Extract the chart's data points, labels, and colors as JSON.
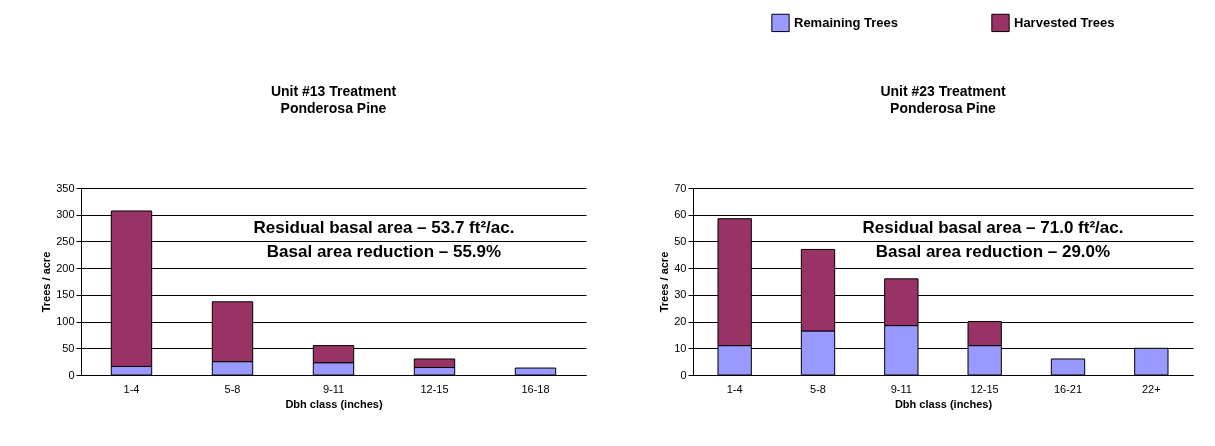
{
  "chart_data": [
    {
      "type": "bar",
      "title": "Unit #13 Treatment",
      "subtitle": "Ponderosa Pine",
      "xlabel": "Dbh class (inches)",
      "ylabel": "Trees / acre",
      "categories": [
        "1-4",
        "5-8",
        "9-11",
        "12-15",
        "16-18"
      ],
      "stacked": true,
      "series": [
        {
          "name": "Remaining Trees",
          "color": "#9999ff",
          "values": [
            16,
            25,
            23,
            14,
            13
          ]
        },
        {
          "name": "Harvested Trees",
          "color": "#993366",
          "values": [
            291,
            112,
            32,
            16,
            0
          ]
        }
      ],
      "ylim": [
        0,
        350
      ],
      "yticks": [
        0,
        50,
        100,
        150,
        200,
        250,
        300,
        350
      ],
      "grid": "y",
      "legend": "top right",
      "annotations": [
        "Residual basal area – 53.7 ft²/ac.",
        "Basal area reduction – 55.9%"
      ]
    },
    {
      "type": "bar",
      "title": "Unit #23 Treatment",
      "subtitle": "Ponderosa Pine",
      "xlabel": "Dbh class (inches)",
      "ylabel": "Trees / acre",
      "categories": [
        "1-4",
        "5-8",
        "9-11",
        "12-15",
        "16-21",
        "22+"
      ],
      "stacked": true,
      "series": [
        {
          "name": "Remaining Trees",
          "color": "#9999ff",
          "values": [
            11,
            16.5,
            18.5,
            11,
            6,
            10
          ]
        },
        {
          "name": "Harvested Trees",
          "color": "#993366",
          "values": [
            47.5,
            30.5,
            17.5,
            9,
            0,
            0
          ]
        }
      ],
      "ylim": [
        0,
        70
      ],
      "yticks": [
        0,
        10,
        20,
        30,
        40,
        50,
        60,
        70
      ],
      "grid": "y",
      "legend": "top right",
      "annotations": [
        "Residual basal area – 71.0 ft²/ac.",
        "Basal area reduction – 29.0%"
      ]
    }
  ]
}
